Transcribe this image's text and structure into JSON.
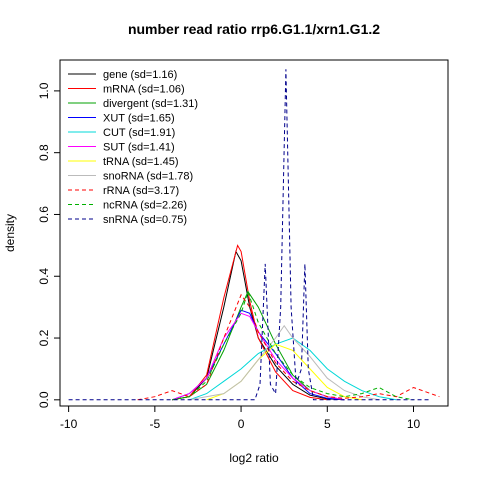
{
  "chart_data": {
    "type": "line",
    "title": "number read ratio rrp6.G1.1/xrn1.G1.2",
    "xlabel": "log2 ratio",
    "ylabel": "density",
    "xlim": [
      -10.5,
      12
    ],
    "ylim": [
      -0.02,
      1.1
    ],
    "x_ticks": [
      -10,
      -5,
      0,
      5,
      10
    ],
    "y_ticks": [
      0.0,
      0.2,
      0.4,
      0.6,
      0.8,
      1.0
    ],
    "x_tick_labels": [
      "-10",
      "-5",
      "0",
      "5",
      "10"
    ],
    "y_tick_labels": [
      "0.0",
      "0.2",
      "0.4",
      "0.6",
      "0.8",
      "1.0"
    ],
    "grid": false,
    "legend_position": "top-left",
    "series": [
      {
        "name": "gene (sd=1.16)",
        "color": "#000000",
        "dash": "solid",
        "points": [
          [
            -4,
            0
          ],
          [
            -3,
            0.01
          ],
          [
            -2,
            0.07
          ],
          [
            -1,
            0.3
          ],
          [
            -0.3,
            0.48
          ],
          [
            0,
            0.45
          ],
          [
            0.5,
            0.3
          ],
          [
            1,
            0.2
          ],
          [
            2,
            0.11
          ],
          [
            3,
            0.05
          ],
          [
            4,
            0.015
          ],
          [
            5,
            0.003
          ],
          [
            6,
            0
          ]
        ]
      },
      {
        "name": "mRNA (sd=1.06)",
        "color": "#ff0000",
        "dash": "solid",
        "points": [
          [
            -4,
            0
          ],
          [
            -3,
            0.01
          ],
          [
            -2,
            0.08
          ],
          [
            -1,
            0.33
          ],
          [
            -0.2,
            0.5
          ],
          [
            0,
            0.48
          ],
          [
            0.5,
            0.32
          ],
          [
            1,
            0.2
          ],
          [
            2,
            0.09
          ],
          [
            3,
            0.03
          ],
          [
            4,
            0.008
          ],
          [
            5,
            0
          ]
        ]
      },
      {
        "name": "divergent (sd=1.31)",
        "color": "#00a000",
        "dash": "solid",
        "points": [
          [
            -4,
            0
          ],
          [
            -3,
            0.01
          ],
          [
            -2,
            0.05
          ],
          [
            -1,
            0.16
          ],
          [
            0,
            0.3
          ],
          [
            0.4,
            0.35
          ],
          [
            1,
            0.3
          ],
          [
            2,
            0.18
          ],
          [
            3,
            0.08
          ],
          [
            4,
            0.03
          ],
          [
            5,
            0.01
          ],
          [
            6,
            0
          ]
        ]
      },
      {
        "name": "XUT (sd=1.65)",
        "color": "#0000ff",
        "dash": "solid",
        "points": [
          [
            -4,
            0
          ],
          [
            -3,
            0.02
          ],
          [
            -2,
            0.07
          ],
          [
            -1,
            0.18
          ],
          [
            0,
            0.29
          ],
          [
            0.5,
            0.28
          ],
          [
            1,
            0.22
          ],
          [
            2,
            0.15
          ],
          [
            3,
            0.07
          ],
          [
            4,
            0.02
          ],
          [
            5,
            0.005
          ],
          [
            6,
            0
          ]
        ]
      },
      {
        "name": "CUT (sd=1.91)",
        "color": "#00d8d8",
        "dash": "solid",
        "points": [
          [
            -3,
            0
          ],
          [
            -2,
            0.02
          ],
          [
            -1,
            0.06
          ],
          [
            0,
            0.1
          ],
          [
            1,
            0.15
          ],
          [
            2,
            0.18
          ],
          [
            3,
            0.2
          ],
          [
            4,
            0.16
          ],
          [
            5,
            0.1
          ],
          [
            6,
            0.06
          ],
          [
            7,
            0.03
          ],
          [
            8,
            0.01
          ],
          [
            9,
            0
          ]
        ]
      },
      {
        "name": "SUT (sd=1.41)",
        "color": "#ff00ff",
        "dash": "solid",
        "points": [
          [
            -4,
            0
          ],
          [
            -3,
            0.02
          ],
          [
            -2,
            0.07
          ],
          [
            -1,
            0.2
          ],
          [
            0,
            0.28
          ],
          [
            0.5,
            0.27
          ],
          [
            1,
            0.22
          ],
          [
            2,
            0.13
          ],
          [
            3,
            0.07
          ],
          [
            4,
            0.03
          ],
          [
            5,
            0.01
          ],
          [
            6,
            0
          ]
        ]
      },
      {
        "name": "tRNA (sd=1.45)",
        "color": "#ffff00",
        "dash": "solid",
        "points": [
          [
            -2,
            0
          ],
          [
            -1,
            0.02
          ],
          [
            0,
            0.06
          ],
          [
            1,
            0.13
          ],
          [
            2,
            0.18
          ],
          [
            3,
            0.16
          ],
          [
            4,
            0.1
          ],
          [
            5,
            0.04
          ],
          [
            6,
            0.01
          ],
          [
            7,
            0
          ]
        ]
      },
      {
        "name": "snoRNA (sd=1.78)",
        "color": "#bbbbbb",
        "dash": "solid",
        "points": [
          [
            -3,
            0
          ],
          [
            -1,
            0.02
          ],
          [
            0,
            0.06
          ],
          [
            1,
            0.13
          ],
          [
            2,
            0.2
          ],
          [
            2.5,
            0.24
          ],
          [
            3,
            0.2
          ],
          [
            4,
            0.14
          ],
          [
            5,
            0.07
          ],
          [
            6,
            0.03
          ],
          [
            7,
            0.01
          ],
          [
            8,
            0
          ]
        ]
      },
      {
        "name": "rRNA (sd=3.17)",
        "color": "#ff0000",
        "dash": "dashed",
        "points": [
          [
            -6,
            0
          ],
          [
            -5,
            0.01
          ],
          [
            -4,
            0.03
          ],
          [
            -3,
            0.01
          ],
          [
            -2,
            0.05
          ],
          [
            -1,
            0.2
          ],
          [
            0,
            0.34
          ],
          [
            0.5,
            0.3
          ],
          [
            1,
            0.22
          ],
          [
            2,
            0.12
          ],
          [
            3,
            0.06
          ],
          [
            4,
            0.03
          ],
          [
            5,
            0.01
          ],
          [
            6,
            0.005
          ],
          [
            7,
            0.01
          ],
          [
            8,
            0.02
          ],
          [
            9,
            0.01
          ],
          [
            10,
            0.04
          ],
          [
            11,
            0.02
          ],
          [
            11.5,
            0.01
          ]
        ]
      },
      {
        "name": "ncRNA (sd=2.26)",
        "color": "#00b000",
        "dash": "dashed",
        "points": [
          [
            -4,
            0
          ],
          [
            -3,
            0.01
          ],
          [
            -2,
            0.06
          ],
          [
            -1,
            0.18
          ],
          [
            0,
            0.28
          ],
          [
            0.4,
            0.35
          ],
          [
            1,
            0.25
          ],
          [
            2,
            0.15
          ],
          [
            3,
            0.08
          ],
          [
            4,
            0.04
          ],
          [
            5,
            0.02
          ],
          [
            6,
            0.01
          ],
          [
            7,
            0.02
          ],
          [
            8,
            0.04
          ],
          [
            9,
            0.01
          ],
          [
            10,
            0
          ]
        ]
      },
      {
        "name": "snRNA (sd=0.75)",
        "color": "#00008b",
        "dash": "dashed",
        "points": [
          [
            -10,
            0
          ],
          [
            0.8,
            0
          ],
          [
            1.1,
            0.05
          ],
          [
            1.4,
            0.44
          ],
          [
            1.7,
            0.05
          ],
          [
            2.0,
            0.02
          ],
          [
            2.3,
            0.3
          ],
          [
            2.6,
            1.07
          ],
          [
            2.9,
            0.3
          ],
          [
            3.2,
            0.05
          ],
          [
            3.5,
            0.1
          ],
          [
            3.7,
            0.44
          ],
          [
            3.9,
            0.1
          ],
          [
            4.2,
            0
          ],
          [
            11,
            0
          ]
        ]
      }
    ]
  }
}
